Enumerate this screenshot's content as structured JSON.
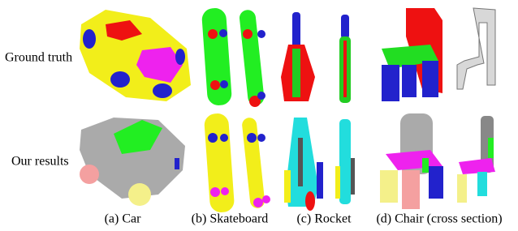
{
  "row_labels": [
    "Ground truth",
    "Our results"
  ],
  "captions": [
    "(a) Car",
    "(b) Skateboard",
    "(c) Rocket",
    "(d) Chair (cross section)"
  ]
}
